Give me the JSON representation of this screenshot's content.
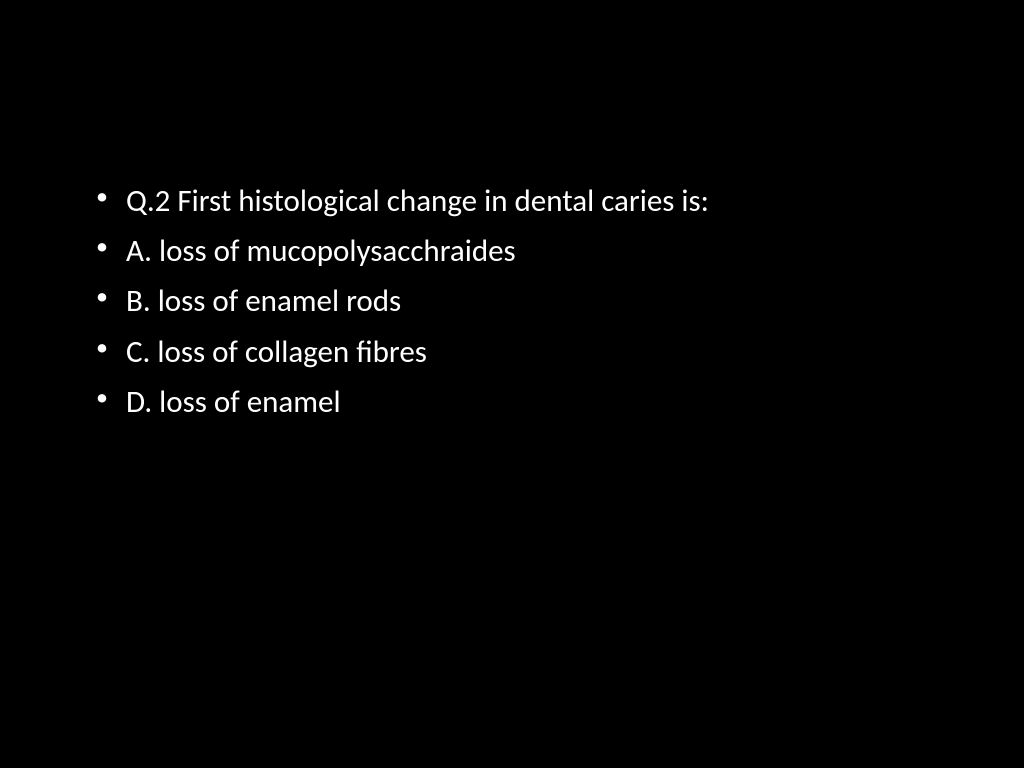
{
  "slide": {
    "background_color": "#000000",
    "text_color": "#ffffff",
    "font_family": "Calibri",
    "font_size": 31,
    "line_height": 1.62,
    "bullets": [
      "Q.2 First histological change in dental caries is:",
      "A. loss of mucopolysacchraides",
      "B. loss of enamel rods",
      "C. loss of collagen fibres",
      "D. loss of enamel"
    ]
  }
}
